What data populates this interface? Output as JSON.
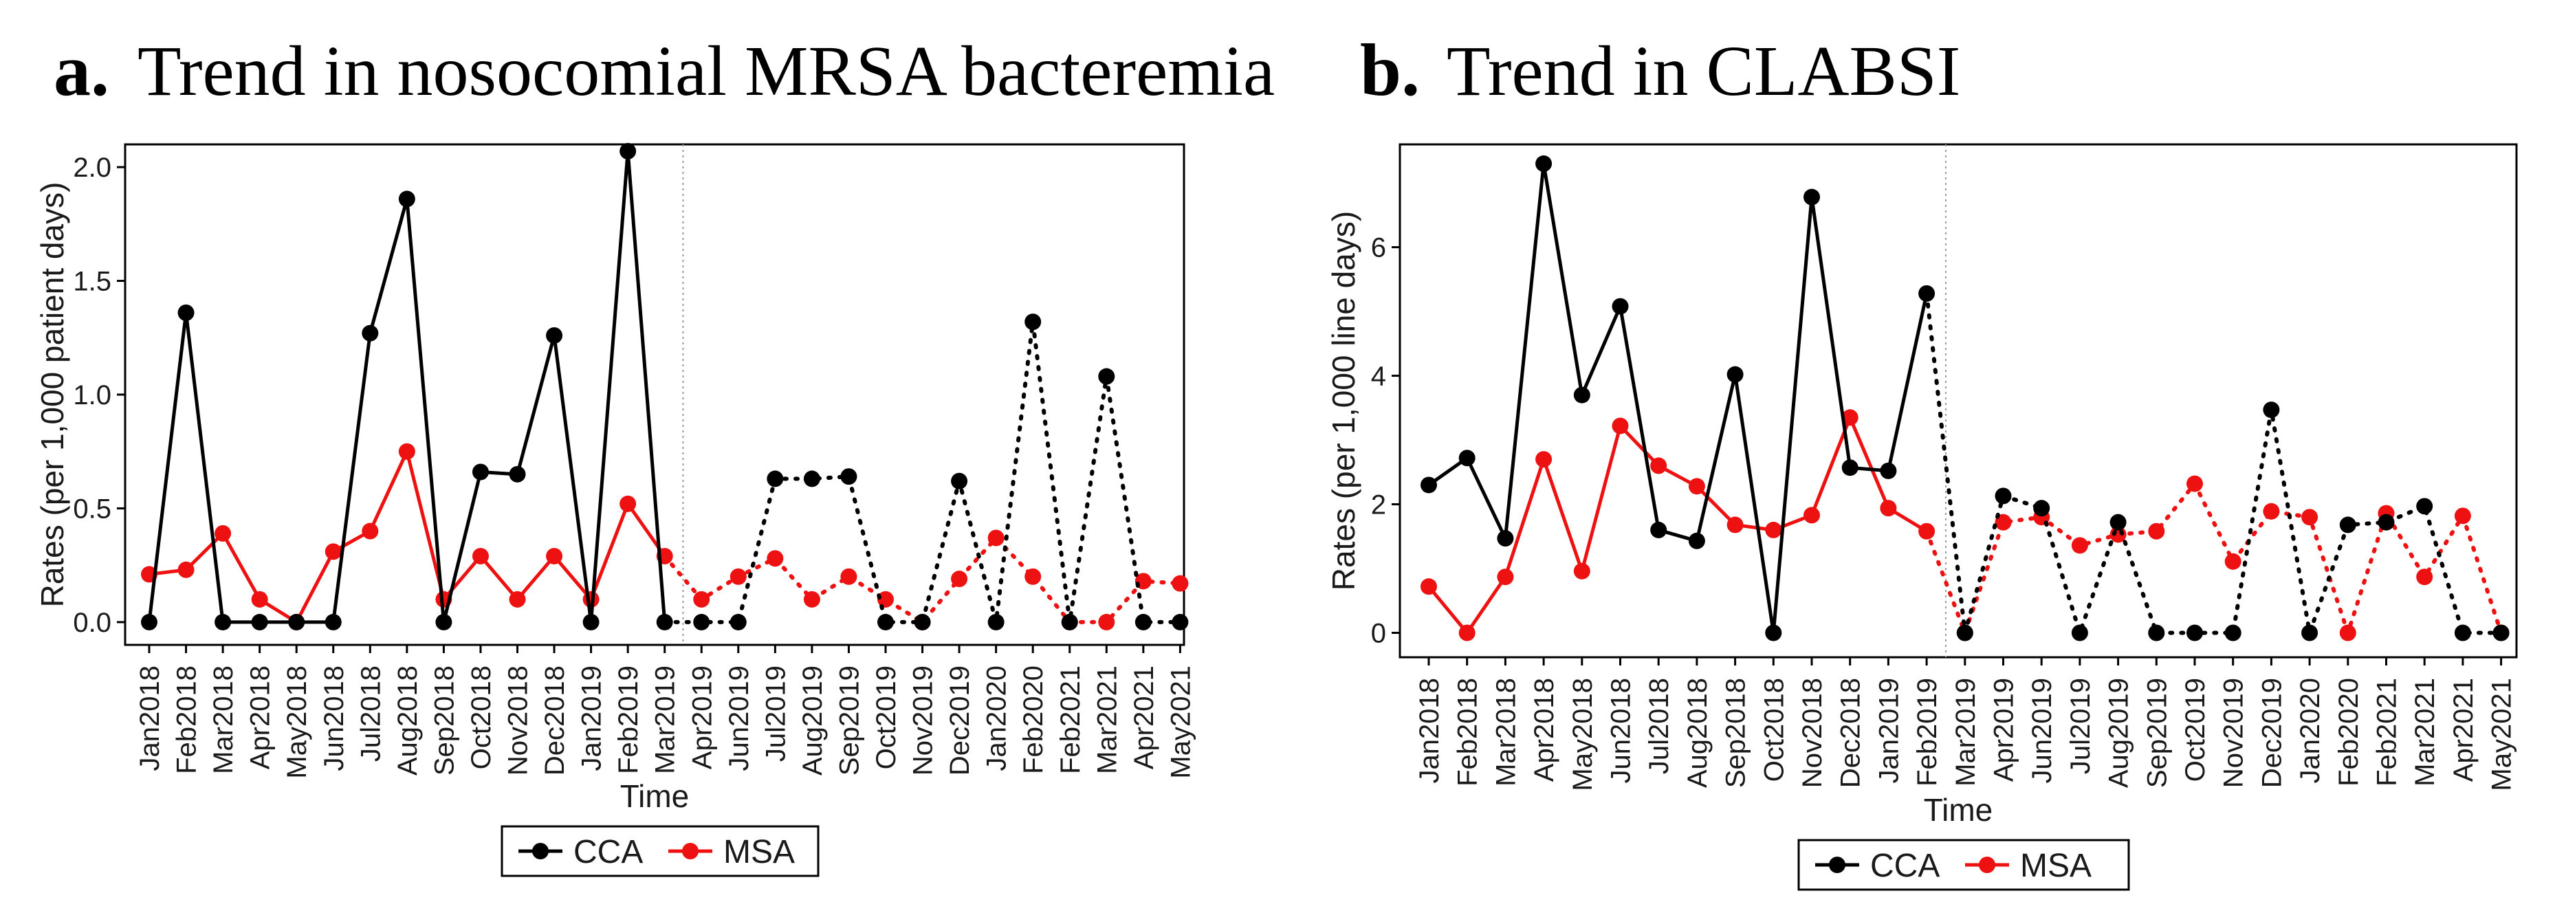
{
  "colors": {
    "CCA": "#000000",
    "MSA": "#ee1111",
    "frame": "#000000",
    "divider": "#999999"
  },
  "chart_data": [
    {
      "type": "line",
      "panel_letter": "a.",
      "title": "Trend in nosocomial MRSA bacteremia",
      "xlabel": "Time",
      "ylabel": "Rates (per 1,000 patient days)",
      "ylim": [
        -0.1,
        2.1
      ],
      "yticks": [
        0.0,
        0.5,
        1.0,
        1.5,
        2.0
      ],
      "ytick_labels": [
        "0.0",
        "0.5",
        "1.0",
        "1.5",
        "2.0"
      ],
      "intervention_after_index": 15,
      "grid": false,
      "legend": {
        "position": "bottom",
        "entries": [
          "CCA",
          "MSA"
        ]
      },
      "categories": [
        "Jan2018",
        "Feb2018",
        "Mar2018",
        "Apr2018",
        "May2018",
        "Jun2018",
        "Jul2018",
        "Aug2018",
        "Sep2018",
        "Oct2018",
        "Nov2018",
        "Dec2018",
        "Jan2019",
        "Feb2019",
        "Mar2019",
        "Apr2019",
        "Jun2019",
        "Jul2019",
        "Aug2019",
        "Sep2019",
        "Oct2019",
        "Nov2019",
        "Dec2019",
        "Jan2020",
        "Feb2020",
        "Feb2021",
        "Mar2021",
        "Apr2021",
        "May2021"
      ],
      "series": [
        {
          "name": "CCA",
          "values": [
            0,
            1.36,
            0,
            0,
            0,
            0,
            1.27,
            1.86,
            0,
            0.66,
            0.65,
            1.26,
            0,
            2.07,
            0,
            0,
            0,
            0.63,
            0.63,
            0.64,
            0,
            0,
            0.62,
            0,
            1.32,
            0,
            1.08,
            0,
            0
          ]
        },
        {
          "name": "MSA",
          "values": [
            0.21,
            0.23,
            0.39,
            0.1,
            0,
            0.31,
            0.4,
            0.75,
            0.1,
            0.29,
            0.1,
            0.29,
            0.1,
            0.52,
            0.29,
            0.1,
            0.2,
            0.28,
            0.1,
            0.2,
            0.1,
            0,
            0.19,
            0.37,
            0.2,
            0,
            0,
            0.18,
            0.17
          ]
        }
      ]
    },
    {
      "type": "line",
      "panel_letter": "b.",
      "title": "Trend in CLABSI",
      "xlabel": "Time",
      "ylabel": "Rates (per 1,000 line days)",
      "ylim": [
        -0.38,
        7.6
      ],
      "yticks": [
        0,
        2,
        4,
        6
      ],
      "ytick_labels": [
        "0",
        "2",
        "4",
        "6"
      ],
      "intervention_after_index": 14,
      "grid": false,
      "legend": {
        "position": "bottom",
        "entries": [
          "CCA",
          "MSA"
        ]
      },
      "categories": [
        "Jan2018",
        "Feb2018",
        "Mar2018",
        "Apr2018",
        "May2018",
        "Jun2018",
        "Jul2018",
        "Aug2018",
        "Sep2018",
        "Oct2018",
        "Nov2018",
        "Dec2018",
        "Jan2019",
        "Feb2019",
        "Mar2019",
        "Apr2019",
        "Jun2019",
        "Jul2019",
        "Aug2019",
        "Sep2019",
        "Oct2019",
        "Nov2019",
        "Dec2019",
        "Jan2020",
        "Feb2020",
        "Feb2021",
        "Mar2021",
        "Apr2021",
        "May2021"
      ],
      "series": [
        {
          "name": "CCA",
          "values": [
            2.3,
            2.72,
            1.47,
            7.3,
            3.7,
            5.08,
            1.6,
            1.43,
            4.02,
            0,
            6.78,
            2.57,
            2.52,
            5.28,
            0,
            2.13,
            1.94,
            0,
            1.72,
            0,
            0,
            0,
            3.47,
            0,
            1.68,
            1.72,
            1.97,
            0,
            0
          ]
        },
        {
          "name": "MSA",
          "values": [
            0.72,
            0,
            0.87,
            2.7,
            0.96,
            3.22,
            2.6,
            2.28,
            1.68,
            1.6,
            1.83,
            3.35,
            1.94,
            1.58,
            0,
            1.72,
            1.8,
            1.36,
            1.53,
            1.58,
            2.32,
            1.11,
            1.89,
            1.8,
            0,
            1.86,
            0.87,
            1.82,
            0
          ]
        }
      ]
    }
  ]
}
